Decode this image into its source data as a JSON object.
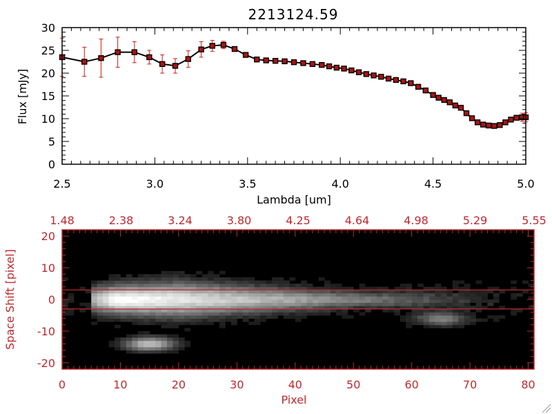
{
  "colors": {
    "spectrum_line": "#000000",
    "error_bars": "#d01818",
    "markers": "#b01010",
    "red_axis": "#c0282e",
    "image_bg": "#000000"
  },
  "chart_data": [
    {
      "type": "line",
      "title": "2213124.59",
      "xlabel": "Lambda [um]",
      "ylabel": "Flux [mJy]",
      "xlim": [
        2.5,
        5.0
      ],
      "ylim": [
        0,
        30
      ],
      "x_ticks": [
        "2.5",
        "3.0",
        "3.5",
        "4.0",
        "4.5",
        "5.0"
      ],
      "y_ticks": [
        "0",
        "5",
        "10",
        "15",
        "20",
        "25",
        "30"
      ],
      "grid": false,
      "series": [
        {
          "x": [
            2.5,
            2.62,
            2.71,
            2.8,
            2.89,
            2.97,
            3.04,
            3.11,
            3.18,
            3.25,
            3.31,
            3.37,
            3.43,
            3.49,
            3.55,
            3.6,
            3.65,
            3.7,
            3.75,
            3.8,
            3.85,
            3.9,
            3.94,
            3.98,
            4.02,
            4.06,
            4.1,
            4.14,
            4.18,
            4.22,
            4.26,
            4.3,
            4.34,
            4.38,
            4.42,
            4.46,
            4.5,
            4.53,
            4.56,
            4.59,
            4.62,
            4.65,
            4.68,
            4.71,
            4.74,
            4.77,
            4.8,
            4.83,
            4.86,
            4.89,
            4.92,
            4.95,
            4.98,
            5.0
          ],
          "y": [
            23.5,
            22.5,
            23.3,
            24.6,
            24.6,
            23.5,
            22.0,
            21.6,
            23.1,
            25.2,
            26.0,
            26.2,
            25.3,
            24.0,
            23.0,
            22.8,
            22.7,
            22.6,
            22.4,
            22.2,
            22.0,
            21.8,
            21.5,
            21.2,
            21.0,
            20.6,
            20.2,
            19.8,
            19.5,
            19.2,
            18.8,
            18.5,
            18.2,
            17.8,
            17.0,
            16.2,
            15.2,
            14.6,
            14.1,
            13.6,
            12.9,
            12.4,
            11.2,
            10.1,
            9.2,
            8.7,
            8.5,
            8.4,
            8.6,
            9.2,
            9.8,
            10.2,
            10.3,
            10.3
          ],
          "yerr": [
            4.2,
            3.2,
            4.2,
            3.3,
            2.3,
            1.5,
            2.0,
            1.6,
            1.8,
            1.7,
            1.2,
            0.8,
            0.5,
            0.4,
            0.3,
            0.3,
            0.3,
            0.3,
            0.3,
            0.3,
            0.3,
            0.3,
            0.3,
            0.3,
            0.3,
            0.3,
            0.3,
            0.3,
            0.3,
            0.3,
            0.3,
            0.3,
            0.3,
            0.3,
            0.3,
            0.3,
            0.3,
            0.3,
            0.3,
            0.3,
            0.3,
            0.3,
            0.3,
            0.3,
            0.3,
            0.3,
            0.3,
            0.3,
            0.3,
            0.4,
            0.5,
            0.6,
            0.9,
            1.0
          ]
        }
      ]
    },
    {
      "type": "heatmap",
      "xlabel": "Pixel",
      "ylabel": "Space Shift [pixel]",
      "xlim": [
        0,
        81
      ],
      "ylim": [
        -22,
        22
      ],
      "x_ticks": [
        "0",
        "10",
        "20",
        "30",
        "40",
        "50",
        "60",
        "70",
        "80"
      ],
      "y_ticks": [
        "-20",
        "-10",
        "0",
        "10",
        "20"
      ],
      "top_ticks": [
        "1.48",
        "2.38",
        "3.24",
        "3.80",
        "4.25",
        "4.64",
        "4.98",
        "5.29",
        "5.55"
      ],
      "extraction_window": [
        -3,
        3
      ],
      "colormap": "grayscale",
      "features": [
        {
          "label": "trace",
          "x_range": [
            5,
            75
          ],
          "y_center": 0,
          "peak_x": 9,
          "peak_intensity": 1.0
        },
        {
          "label": "blob",
          "x": 15,
          "y": -14,
          "intensity": 0.7
        },
        {
          "label": "blob",
          "x": 65,
          "y": -6,
          "intensity": 0.4
        }
      ]
    }
  ]
}
